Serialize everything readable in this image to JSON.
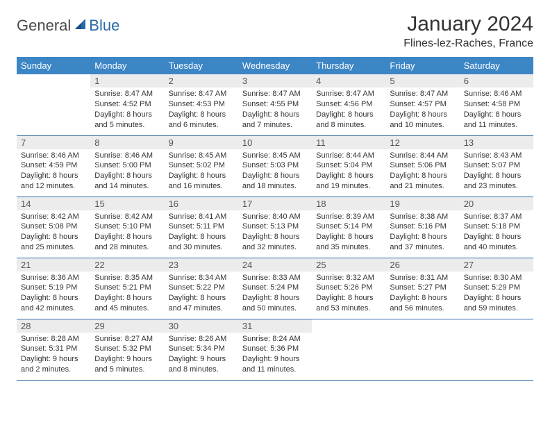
{
  "logo": {
    "general": "General",
    "blue": "Blue"
  },
  "title": "January 2024",
  "location": "Flines-lez-Raches, France",
  "colors": {
    "header_bg": "#3d86c6",
    "header_text": "#ffffff",
    "daynum_bg": "#ececec",
    "row_divider": "#2f6aa0",
    "logo_blue": "#2968a8",
    "body_text": "#333333"
  },
  "weekdays": [
    "Sunday",
    "Monday",
    "Tuesday",
    "Wednesday",
    "Thursday",
    "Friday",
    "Saturday"
  ],
  "weeks": [
    [
      null,
      {
        "n": "1",
        "sr": "Sunrise: 8:47 AM",
        "ss": "Sunset: 4:52 PM",
        "dl": "Daylight: 8 hours and 5 minutes."
      },
      {
        "n": "2",
        "sr": "Sunrise: 8:47 AM",
        "ss": "Sunset: 4:53 PM",
        "dl": "Daylight: 8 hours and 6 minutes."
      },
      {
        "n": "3",
        "sr": "Sunrise: 8:47 AM",
        "ss": "Sunset: 4:55 PM",
        "dl": "Daylight: 8 hours and 7 minutes."
      },
      {
        "n": "4",
        "sr": "Sunrise: 8:47 AM",
        "ss": "Sunset: 4:56 PM",
        "dl": "Daylight: 8 hours and 8 minutes."
      },
      {
        "n": "5",
        "sr": "Sunrise: 8:47 AM",
        "ss": "Sunset: 4:57 PM",
        "dl": "Daylight: 8 hours and 10 minutes."
      },
      {
        "n": "6",
        "sr": "Sunrise: 8:46 AM",
        "ss": "Sunset: 4:58 PM",
        "dl": "Daylight: 8 hours and 11 minutes."
      }
    ],
    [
      {
        "n": "7",
        "sr": "Sunrise: 8:46 AM",
        "ss": "Sunset: 4:59 PM",
        "dl": "Daylight: 8 hours and 12 minutes."
      },
      {
        "n": "8",
        "sr": "Sunrise: 8:46 AM",
        "ss": "Sunset: 5:00 PM",
        "dl": "Daylight: 8 hours and 14 minutes."
      },
      {
        "n": "9",
        "sr": "Sunrise: 8:45 AM",
        "ss": "Sunset: 5:02 PM",
        "dl": "Daylight: 8 hours and 16 minutes."
      },
      {
        "n": "10",
        "sr": "Sunrise: 8:45 AM",
        "ss": "Sunset: 5:03 PM",
        "dl": "Daylight: 8 hours and 18 minutes."
      },
      {
        "n": "11",
        "sr": "Sunrise: 8:44 AM",
        "ss": "Sunset: 5:04 PM",
        "dl": "Daylight: 8 hours and 19 minutes."
      },
      {
        "n": "12",
        "sr": "Sunrise: 8:44 AM",
        "ss": "Sunset: 5:06 PM",
        "dl": "Daylight: 8 hours and 21 minutes."
      },
      {
        "n": "13",
        "sr": "Sunrise: 8:43 AM",
        "ss": "Sunset: 5:07 PM",
        "dl": "Daylight: 8 hours and 23 minutes."
      }
    ],
    [
      {
        "n": "14",
        "sr": "Sunrise: 8:42 AM",
        "ss": "Sunset: 5:08 PM",
        "dl": "Daylight: 8 hours and 25 minutes."
      },
      {
        "n": "15",
        "sr": "Sunrise: 8:42 AM",
        "ss": "Sunset: 5:10 PM",
        "dl": "Daylight: 8 hours and 28 minutes."
      },
      {
        "n": "16",
        "sr": "Sunrise: 8:41 AM",
        "ss": "Sunset: 5:11 PM",
        "dl": "Daylight: 8 hours and 30 minutes."
      },
      {
        "n": "17",
        "sr": "Sunrise: 8:40 AM",
        "ss": "Sunset: 5:13 PM",
        "dl": "Daylight: 8 hours and 32 minutes."
      },
      {
        "n": "18",
        "sr": "Sunrise: 8:39 AM",
        "ss": "Sunset: 5:14 PM",
        "dl": "Daylight: 8 hours and 35 minutes."
      },
      {
        "n": "19",
        "sr": "Sunrise: 8:38 AM",
        "ss": "Sunset: 5:16 PM",
        "dl": "Daylight: 8 hours and 37 minutes."
      },
      {
        "n": "20",
        "sr": "Sunrise: 8:37 AM",
        "ss": "Sunset: 5:18 PM",
        "dl": "Daylight: 8 hours and 40 minutes."
      }
    ],
    [
      {
        "n": "21",
        "sr": "Sunrise: 8:36 AM",
        "ss": "Sunset: 5:19 PM",
        "dl": "Daylight: 8 hours and 42 minutes."
      },
      {
        "n": "22",
        "sr": "Sunrise: 8:35 AM",
        "ss": "Sunset: 5:21 PM",
        "dl": "Daylight: 8 hours and 45 minutes."
      },
      {
        "n": "23",
        "sr": "Sunrise: 8:34 AM",
        "ss": "Sunset: 5:22 PM",
        "dl": "Daylight: 8 hours and 47 minutes."
      },
      {
        "n": "24",
        "sr": "Sunrise: 8:33 AM",
        "ss": "Sunset: 5:24 PM",
        "dl": "Daylight: 8 hours and 50 minutes."
      },
      {
        "n": "25",
        "sr": "Sunrise: 8:32 AM",
        "ss": "Sunset: 5:26 PM",
        "dl": "Daylight: 8 hours and 53 minutes."
      },
      {
        "n": "26",
        "sr": "Sunrise: 8:31 AM",
        "ss": "Sunset: 5:27 PM",
        "dl": "Daylight: 8 hours and 56 minutes."
      },
      {
        "n": "27",
        "sr": "Sunrise: 8:30 AM",
        "ss": "Sunset: 5:29 PM",
        "dl": "Daylight: 8 hours and 59 minutes."
      }
    ],
    [
      {
        "n": "28",
        "sr": "Sunrise: 8:28 AM",
        "ss": "Sunset: 5:31 PM",
        "dl": "Daylight: 9 hours and 2 minutes."
      },
      {
        "n": "29",
        "sr": "Sunrise: 8:27 AM",
        "ss": "Sunset: 5:32 PM",
        "dl": "Daylight: 9 hours and 5 minutes."
      },
      {
        "n": "30",
        "sr": "Sunrise: 8:26 AM",
        "ss": "Sunset: 5:34 PM",
        "dl": "Daylight: 9 hours and 8 minutes."
      },
      {
        "n": "31",
        "sr": "Sunrise: 8:24 AM",
        "ss": "Sunset: 5:36 PM",
        "dl": "Daylight: 9 hours and 11 minutes."
      },
      null,
      null,
      null
    ]
  ]
}
